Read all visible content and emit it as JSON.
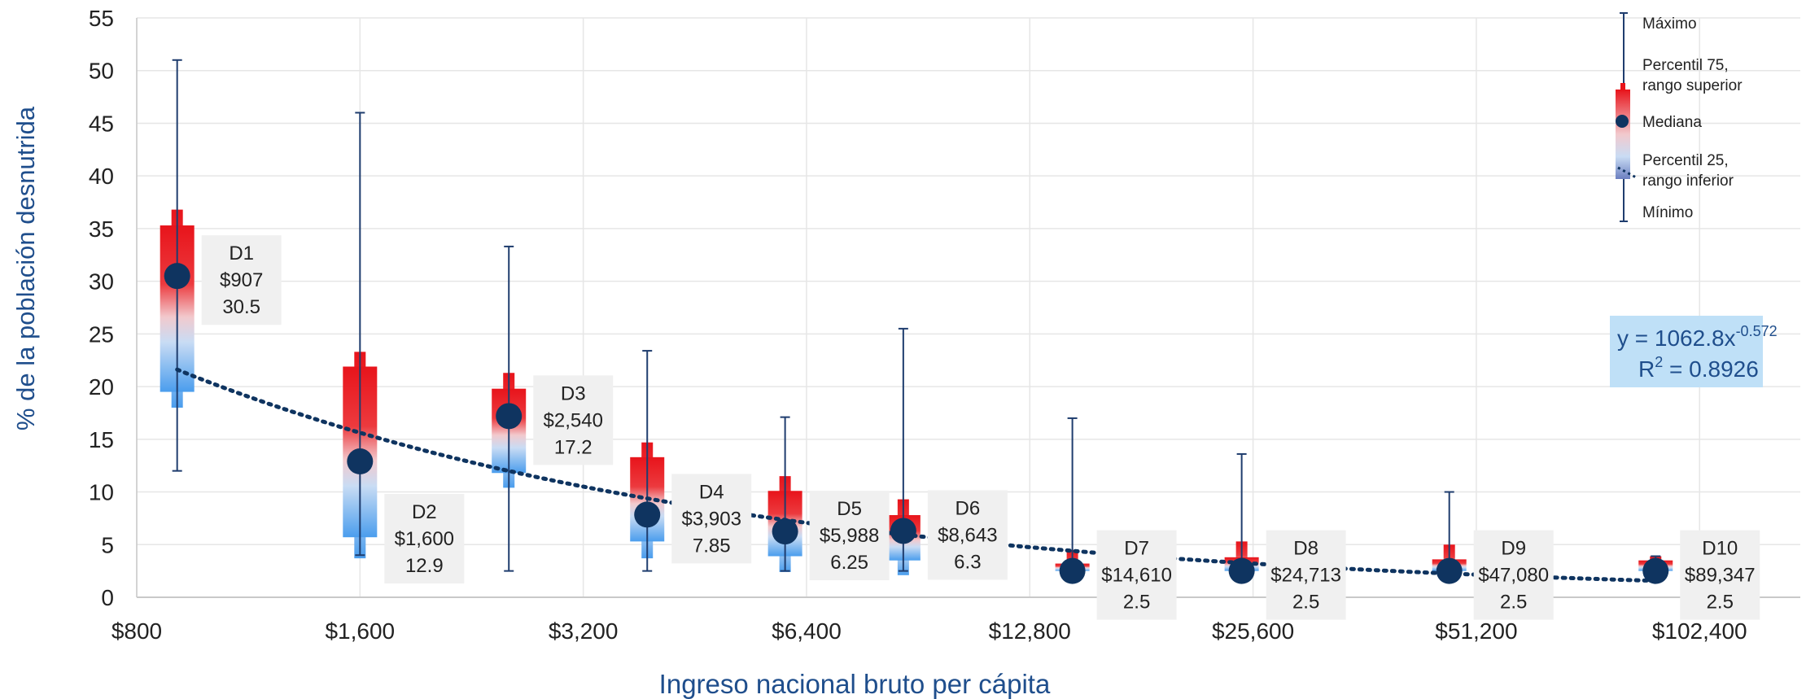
{
  "chart_data": {
    "type": "box",
    "xlabel": "Ingreso nacional bruto per cápita",
    "ylabel": "% de la población desnutrida",
    "x_scale": "log2",
    "xlim": [
      800,
      140000
    ],
    "ylim": [
      0,
      55
    ],
    "xticks": [
      800,
      1600,
      3200,
      6400,
      12800,
      25600,
      51200,
      102400
    ],
    "xtick_labels": [
      "$800",
      "$1,600",
      "$3,200",
      "$6,400",
      "$12,800",
      "$25,600",
      "$51,200",
      "$102,400"
    ],
    "yticks": [
      0,
      5,
      10,
      15,
      20,
      25,
      30,
      35,
      40,
      45,
      50,
      55
    ],
    "grid": true,
    "boxes": [
      {
        "name": "D1",
        "x": 907,
        "income_label": "$907",
        "median_label": "30.5",
        "min": 12,
        "q1": 19.5,
        "median": 30.5,
        "q3": 35.3,
        "max": 51,
        "range_low": 18,
        "range_high": 36.8,
        "label_side": "right-high"
      },
      {
        "name": "D2",
        "x": 1600,
        "income_label": "$1,600",
        "median_label": "12.9",
        "min": 4,
        "q1": 5.7,
        "median": 12.9,
        "q3": 21.9,
        "max": 46,
        "range_low": 3.7,
        "range_high": 23.3,
        "label_side": "right-low"
      },
      {
        "name": "D3",
        "x": 2540,
        "income_label": "$2,540",
        "median_label": "17.2",
        "min": 2.5,
        "q1": 11.8,
        "median": 17.2,
        "q3": 19.8,
        "max": 33.3,
        "range_low": 10.4,
        "range_high": 21.3,
        "label_side": "right-high"
      },
      {
        "name": "D4",
        "x": 3903,
        "income_label": "$3,903",
        "median_label": "7.85",
        "min": 2.5,
        "q1": 5.3,
        "median": 7.85,
        "q3": 13.3,
        "max": 23.4,
        "range_low": 3.7,
        "range_high": 14.7,
        "label_side": "right-high"
      },
      {
        "name": "D5",
        "x": 5988,
        "income_label": "$5,988",
        "median_label": "6.25",
        "min": 2.5,
        "q1": 3.9,
        "median": 6.25,
        "q3": 10.1,
        "max": 17.1,
        "range_low": 2.4,
        "range_high": 11.5,
        "label_side": "right-high"
      },
      {
        "name": "D6",
        "x": 8643,
        "income_label": "$8,643",
        "median_label": "6.3",
        "min": 2.5,
        "q1": 3.5,
        "median": 6.3,
        "q3": 7.8,
        "max": 25.5,
        "range_low": 2.1,
        "range_high": 9.3,
        "label_side": "right-high"
      },
      {
        "name": "D7",
        "x": 14610,
        "income_label": "$14,610",
        "median_label": "2.5",
        "min": 2.5,
        "q1": 2.5,
        "median": 2.5,
        "q3": 3.2,
        "max": 17,
        "range_low": 1.5,
        "range_high": 4.5,
        "label_side": "right-high"
      },
      {
        "name": "D8",
        "x": 24713,
        "income_label": "$24,713",
        "median_label": "2.5",
        "min": 2.5,
        "q1": 2.5,
        "median": 2.5,
        "q3": 3.8,
        "max": 13.6,
        "range_low": 1.5,
        "range_high": 5.3,
        "label_side": "right-high"
      },
      {
        "name": "D9",
        "x": 47080,
        "income_label": "$47,080",
        "median_label": "2.5",
        "min": 2.5,
        "q1": 2.5,
        "median": 2.5,
        "q3": 3.6,
        "max": 10,
        "range_low": 1.5,
        "range_high": 5,
        "label_side": "right-high"
      },
      {
        "name": "D10",
        "x": 89347,
        "income_label": "$89,347",
        "median_label": "2.5",
        "min": 2.5,
        "q1": 2.5,
        "median": 2.5,
        "q3": 3.5,
        "max": 3.9,
        "range_low": 1.5,
        "range_high": 3.9,
        "label_side": "right-high"
      }
    ],
    "trendline": {
      "type": "power",
      "a": 1062.8,
      "b": -0.572,
      "r2": 0.8926,
      "equation_prefix": "y = 1062.8x",
      "equation_exponent": "-0.572",
      "r2_prefix": "R",
      "r2_exponent": "2",
      "r2_suffix": " = 0.8926",
      "x_range": [
        907,
        89347
      ]
    },
    "legend": {
      "position": "top-right",
      "max_label": "Máximo",
      "p75_label_1": "Percentil 75,",
      "p75_label_2": "rango superior",
      "median_label": "Mediana",
      "p25_label_1": "Percentil 25,",
      "p25_label_2": "rango inferior",
      "min_label": "Mínimo"
    },
    "colors": {
      "whisker": "#1f3d6e",
      "median_marker": "#0f3460",
      "box_high": "#e8141b",
      "box_low": "#4a9ded",
      "trendline": "#0f3460",
      "label_bg": "#f0f0f0",
      "equation_bg": "#bfe0f7",
      "grid": "#e6e6e6",
      "axis_title": "#1f4e8c"
    }
  }
}
